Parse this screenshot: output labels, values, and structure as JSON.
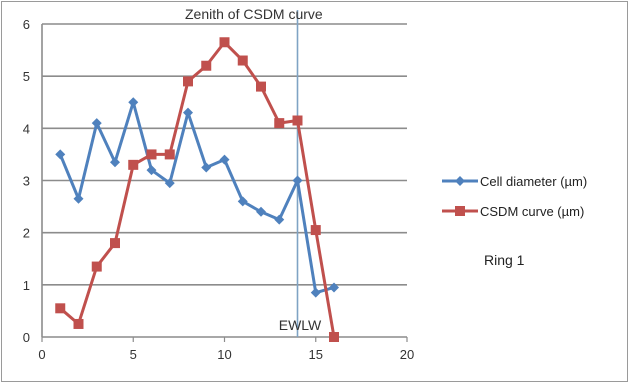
{
  "chart_data": {
    "type": "line",
    "title": "",
    "xlabel": "",
    "ylabel": "",
    "xlim": [
      0,
      20
    ],
    "ylim": [
      0,
      6
    ],
    "x_ticks": [
      0,
      5,
      10,
      15,
      20
    ],
    "y_ticks": [
      0,
      1,
      2,
      3,
      4,
      5,
      6
    ],
    "grid": "horizontal",
    "legend_position": "right",
    "series": [
      {
        "name": "Cell diameter (µm)",
        "color": "#4f81bd",
        "marker": "diamond",
        "x": [
          1,
          2,
          3,
          4,
          5,
          6,
          7,
          8,
          9,
          10,
          11,
          12,
          13,
          14,
          15,
          16
        ],
        "y": [
          3.5,
          2.65,
          4.1,
          3.35,
          4.5,
          3.2,
          2.95,
          4.3,
          3.25,
          3.4,
          2.6,
          2.4,
          2.25,
          3.0,
          0.85,
          0.95
        ]
      },
      {
        "name": "CSDM curve (µm)",
        "color": "#c0504d",
        "marker": "square",
        "x": [
          1,
          2,
          3,
          4,
          5,
          6,
          7,
          8,
          9,
          10,
          11,
          12,
          13,
          14,
          15,
          16
        ],
        "y": [
          0.55,
          0.25,
          1.35,
          1.8,
          3.3,
          3.5,
          3.5,
          4.9,
          5.2,
          5.65,
          5.3,
          4.8,
          4.1,
          4.15,
          2.05,
          0.0
        ]
      }
    ],
    "annotations": {
      "zenith_label": "Zenith of CSDM curve",
      "boundary_label": "EWLW",
      "boundary_x": 14,
      "ring_label": "Ring 1"
    }
  }
}
